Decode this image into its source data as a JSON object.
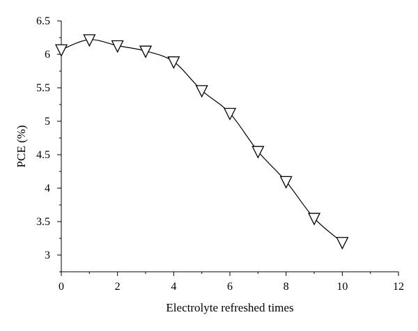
{
  "chart_data": {
    "type": "line",
    "title": "",
    "xlabel": "Electrolyte refreshed times",
    "ylabel": "PCE (%)",
    "xlim": [
      0,
      12
    ],
    "ylim": [
      2.75,
      6.5
    ],
    "x_ticks": [
      0,
      2,
      4,
      6,
      8,
      10,
      12
    ],
    "y_ticks": [
      3,
      3.5,
      4,
      4.5,
      5,
      5.5,
      6,
      6.5
    ],
    "x_tick_labels": [
      "0",
      "2",
      "4",
      "6",
      "8",
      "10",
      "12"
    ],
    "y_tick_labels": [
      "3",
      "3.5",
      "4",
      "4.5",
      "5",
      "5.5",
      "6",
      "6.5"
    ],
    "grid": false,
    "marker": "open-down-triangle",
    "series": [
      {
        "x": [
          0,
          1,
          2,
          3,
          4,
          5,
          6,
          7,
          8,
          9,
          10
        ],
        "y": [
          6.07,
          6.22,
          6.13,
          6.05,
          5.89,
          5.46,
          5.12,
          4.55,
          4.1,
          3.55,
          3.19
        ]
      }
    ]
  }
}
